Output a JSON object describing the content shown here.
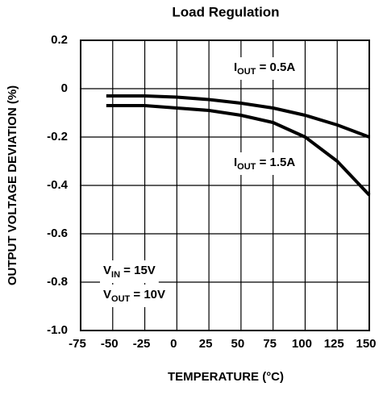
{
  "chart_data": {
    "type": "line",
    "title": "Load Regulation",
    "x_label": "TEMPERATURE (°C)",
    "y_label": "OUTPUT VOLTAGE DEVIATION (%)",
    "xlim": [
      -75,
      150
    ],
    "xticks": [
      -75,
      -50,
      -25,
      0,
      25,
      50,
      75,
      100,
      125,
      150
    ],
    "ylim": [
      -1,
      0.2
    ],
    "yticks": [
      0.2,
      0,
      -0.2,
      -0.4,
      -0.6,
      -0.8,
      {
        "value": -1,
        "label": "-1.0"
      }
    ],
    "grid": true,
    "x": [
      -55,
      -25,
      0,
      25,
      50,
      75,
      100,
      125,
      150
    ],
    "series": [
      {
        "label": {
          "main": "I",
          "sub": "OUT",
          "rest": " = 0.5A"
        },
        "color": "#000000",
        "values": [
          -0.03,
          -0.03,
          -0.035,
          -0.045,
          -0.06,
          -0.08,
          -0.11,
          -0.15,
          -0.2
        ]
      },
      {
        "label": {
          "main": "I",
          "sub": "OUT",
          "rest": " = 1.5A"
        },
        "color": "#000000",
        "values": [
          -0.07,
          -0.07,
          -0.08,
          -0.09,
          -0.11,
          -0.14,
          -0.2,
          -0.3,
          -0.44
        ]
      }
    ],
    "annotations": [
      {
        "main": "V",
        "sub": "IN",
        "rest": " = 15V"
      },
      {
        "main": "V",
        "sub": "OUT",
        "rest": " = 10V"
      }
    ]
  }
}
